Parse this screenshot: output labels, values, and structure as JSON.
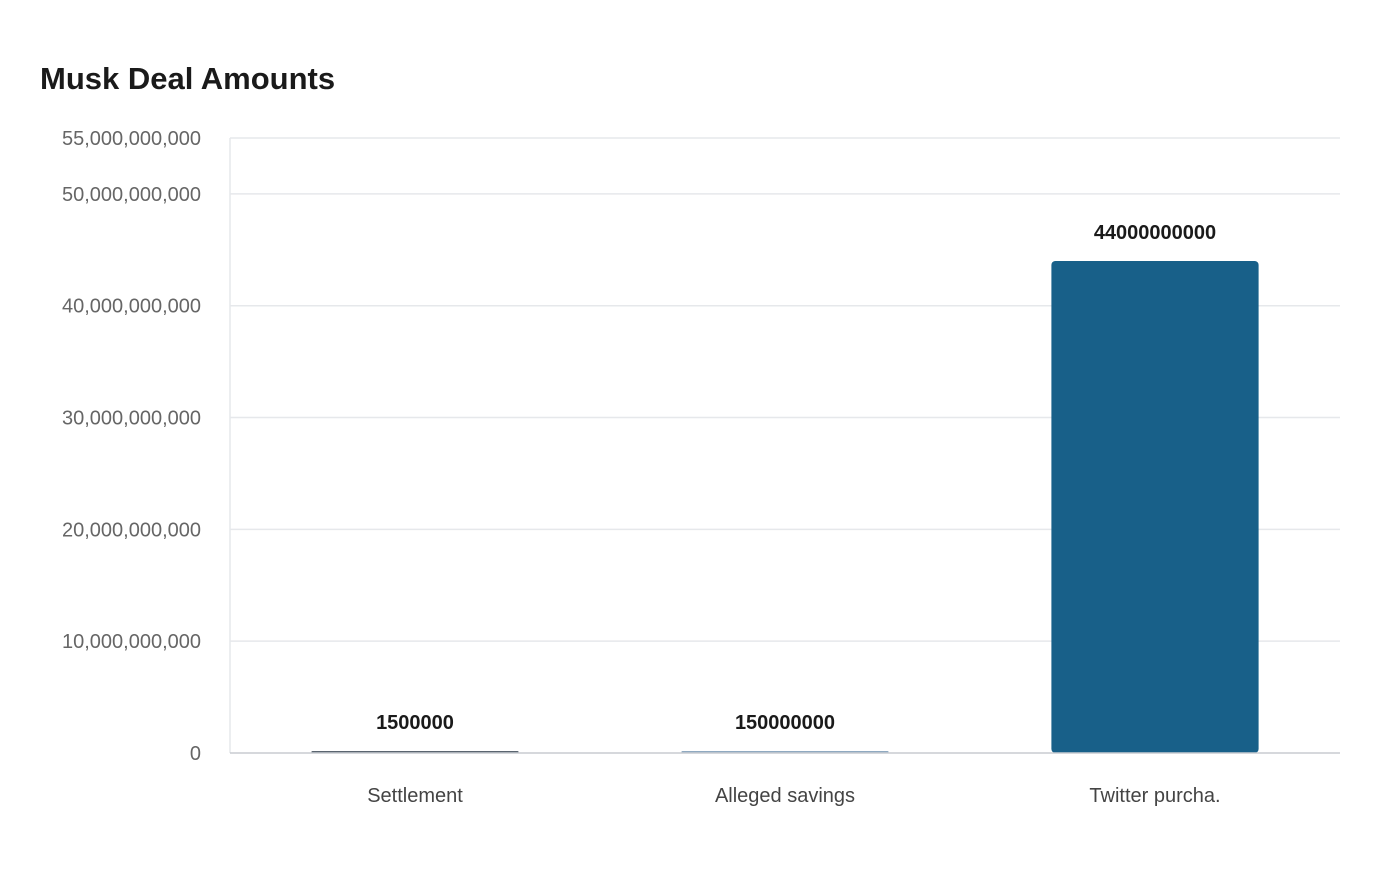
{
  "chart_data": {
    "type": "bar",
    "title": "Musk Deal Amounts",
    "xlabel": "",
    "ylabel": "",
    "categories": [
      "Settlement",
      "Alleged savings",
      "Twitter purcha."
    ],
    "values": [
      1500000,
      150000000,
      44000000000
    ],
    "data_labels": [
      "1500000",
      "150000000",
      "44000000000"
    ],
    "ylim": [
      0,
      55000000000
    ],
    "yticks": [
      0,
      10000000000,
      20000000000,
      30000000000,
      40000000000,
      50000000000,
      55000000000
    ],
    "ytick_labels": [
      "0",
      "10,000,000,000",
      "20,000,000,000",
      "30,000,000,000",
      "40,000,000,000",
      "50,000,000,000",
      "55,000,000,000"
    ],
    "grid": true,
    "legend": "none",
    "bar_colors": [
      "#5b6570",
      "#8fa9c0",
      "#186089"
    ],
    "colors": {
      "grid": "#e6e8eb",
      "axis": "#c8ccd1"
    }
  }
}
